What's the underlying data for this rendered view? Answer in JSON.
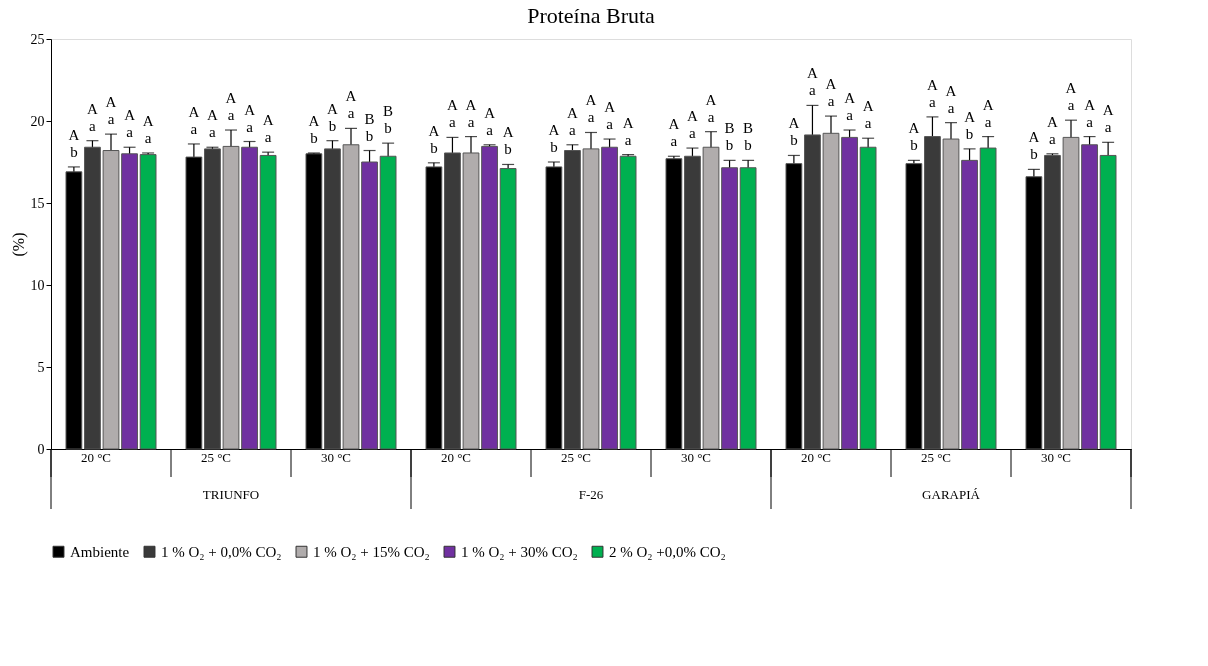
{
  "chart_data": {
    "type": "bar",
    "title": "Proteína Bruta",
    "ylabel": "(%)",
    "categories": [
      "20 °C",
      "25 °C",
      "30 °C",
      "20 °C",
      "25 °C",
      "30 °C",
      "20 °C",
      "25 °C",
      "30 °C"
    ],
    "annotations": [
      "TRIUNFO",
      "F-26",
      "GARAPIÁ"
    ],
    "ylim": [
      0,
      25
    ],
    "yticks": [
      0,
      5,
      10,
      15,
      20,
      25
    ],
    "grid": false,
    "legend": "bottom",
    "series": [
      {
        "name": "Ambiente",
        "color": "#000000",
        "values": [
          16.9,
          17.8,
          18.0,
          17.2,
          17.2,
          17.7,
          17.4,
          17.4,
          16.6
        ],
        "errors": [
          0.3,
          0.8,
          0.05,
          0.25,
          0.3,
          0.15,
          0.5,
          0.2,
          0.45
        ],
        "value_labels": [
          "A\nb",
          "A\na",
          "A\nb",
          "A\nb",
          "A\nb",
          "A\na",
          "A\nb",
          "A\nb",
          "A\nb"
        ]
      },
      {
        "name": "1 % O₂ + 0,0% CO₂",
        "color": "#3a3a3a",
        "values": [
          18.4,
          18.3,
          18.3,
          18.05,
          18.2,
          17.85,
          19.15,
          19.05,
          17.9
        ],
        "errors": [
          0.4,
          0.1,
          0.5,
          0.95,
          0.35,
          0.5,
          1.8,
          1.2,
          0.1
        ],
        "value_labels": [
          "A\na",
          "A\na",
          "A\nb",
          "A\na",
          "A\na",
          "A\na",
          "A\na",
          "A\na",
          "A\na"
        ]
      },
      {
        "name": "1 % O₂ + 15% CO₂",
        "color": "#b0acac",
        "values": [
          18.2,
          18.45,
          18.55,
          18.05,
          18.3,
          18.4,
          19.25,
          18.9,
          19.0
        ],
        "errors": [
          1.0,
          1.0,
          1.0,
          1.0,
          1.0,
          0.95,
          1.05,
          1.0,
          1.05
        ],
        "value_labels": [
          "A\na",
          "A\na",
          "A\na",
          "A\na",
          "A\na",
          "A\na",
          "A\na",
          "A\na",
          "A\na"
        ]
      },
      {
        "name": "1 % O₂ + 30% CO₂",
        "color": "#7030a0",
        "values": [
          18.0,
          18.4,
          17.5,
          18.45,
          18.4,
          17.15,
          19.0,
          17.6,
          18.55
        ],
        "errors": [
          0.4,
          0.35,
          0.7,
          0.1,
          0.5,
          0.45,
          0.45,
          0.7,
          0.5
        ],
        "value_labels": [
          "A\na",
          "A\na",
          "B\nb",
          "A\na",
          "A\na",
          "B\nb",
          "A\na",
          "A\nb",
          "A\na"
        ]
      },
      {
        "name": "2 % O₂ +0,0% CO₂",
        "color": "#00b050",
        "values": [
          17.95,
          17.9,
          17.85,
          17.1,
          17.85,
          17.15,
          18.4,
          18.35,
          17.9
        ],
        "errors": [
          0.1,
          0.2,
          0.8,
          0.25,
          0.1,
          0.45,
          0.55,
          0.7,
          0.8
        ],
        "value_labels": [
          "A\na",
          "A\na",
          "B\nb",
          "A\nb",
          "A\na",
          "B\nb",
          "A\na",
          "A\na",
          "A\na"
        ]
      }
    ]
  }
}
